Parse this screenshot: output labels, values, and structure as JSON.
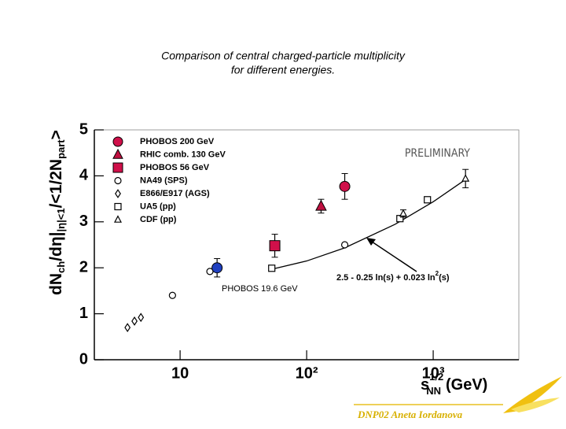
{
  "chart_data": {
    "type": "scatter",
    "title": [
      "Comparison of central charged-particle multiplicity",
      "for different energies."
    ],
    "x_label": {
      "base": "s",
      "sup": "1/2",
      "sub": "NN",
      "unit": "(GeV)"
    },
    "y_label": [
      {
        "text": "dN",
        "pos": "base"
      },
      {
        "text": "ch",
        "pos": "sub"
      },
      {
        "text": "/dη|",
        "pos": "base"
      },
      {
        "text": "|η|<1",
        "pos": "sub"
      },
      {
        "text": "/<",
        "pos": "base"
      },
      {
        "text": "1/2",
        "pos": "base"
      },
      {
        "text": "N",
        "pos": "base"
      },
      {
        "text": "part",
        "pos": "sub"
      },
      {
        "text": ">",
        "pos": "base"
      }
    ],
    "xscale": "log",
    "xlim": [
      2.1,
      4750
    ],
    "xticks": [
      10,
      {
        "value": 100,
        "label": "10²"
      },
      {
        "value": 1000,
        "label": "10³"
      }
    ],
    "ylim": [
      0,
      5
    ],
    "yticks": [
      0,
      1,
      2,
      3,
      4,
      5
    ],
    "annotations": {
      "preliminary": "PRELIMINARY"
    },
    "series": [
      {
        "name": "PHOBOS 200 GeV",
        "marker": "circle",
        "color": "#d0104a",
        "x": [
          200
        ],
        "values": [
          3.77
        ],
        "errors": [
          0.28
        ]
      },
      {
        "name": "RHIC comb. 130 GeV",
        "marker": "triangle",
        "color": "#c01040",
        "x": [
          130
        ],
        "values": [
          3.34
        ],
        "errors": [
          0.15
        ]
      },
      {
        "name": "PHOBOS 56 GeV",
        "marker": "square",
        "color": "#d0104a",
        "x": [
          56
        ],
        "values": [
          2.48
        ],
        "errors": [
          0.25
        ]
      },
      {
        "name": "NA49 (SPS)",
        "marker": "circle-open",
        "color": "#000000",
        "x": [
          8.7,
          17.2,
          200
        ],
        "values": [
          1.4,
          1.92,
          2.5
        ]
      },
      {
        "name": "E866/E917 (AGS)",
        "marker": "diamond-open",
        "color": "#000000",
        "x": [
          3.84,
          4.36,
          4.9
        ],
        "values": [
          0.7,
          0.84,
          0.92
        ]
      },
      {
        "name": "UA5 (pp)",
        "marker": "square-open",
        "color": "#000000",
        "x": [
          53,
          546,
          900
        ],
        "values": [
          1.99,
          3.07,
          3.48
        ]
      },
      {
        "name": "CDF (pp)",
        "marker": "triangle-open",
        "color": "#000000",
        "x": [
          580,
          1800
        ],
        "values": [
          3.18,
          3.94
        ],
        "errors": [
          0.08,
          0.2
        ]
      },
      {
        "name": "PHOBOS 19.6 GeV",
        "marker": "circle",
        "color": "#2040c0",
        "legend": false,
        "x": [
          19.6
        ],
        "values": [
          2.0
        ],
        "errors": [
          0.2
        ]
      }
    ],
    "fit": {
      "label": "2.5 - 0.25 ln(s) + 0.023 ln",
      "sup": "2",
      "tail": "(s)",
      "color": "#000000",
      "x": [
        50,
        100,
        200,
        500,
        1000,
        1800
      ],
      "values": [
        1.952,
        2.148,
        2.434,
        2.946,
        3.436,
        3.92
      ]
    },
    "footer": "DNP02   Aneta Iordanova"
  }
}
